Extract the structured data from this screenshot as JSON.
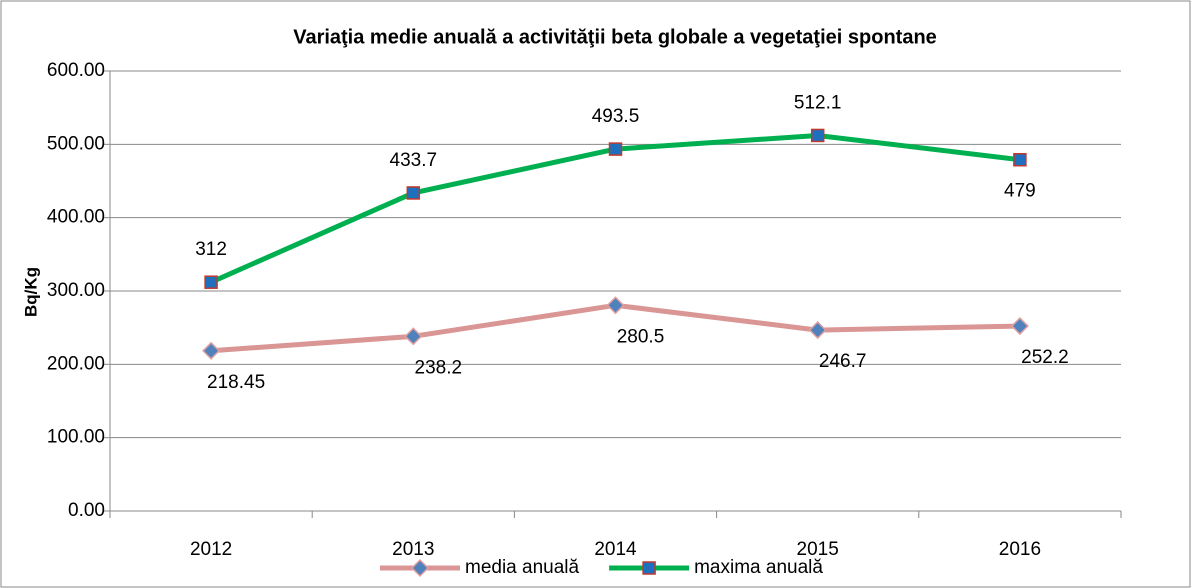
{
  "chart_data": {
    "type": "line",
    "title": "Variaţia medie anuală a activităţii beta globale a vegetaţiei spontane",
    "y_label": "Bq/Kg",
    "categories": [
      "2012",
      "2013",
      "2014",
      "2015",
      "2016"
    ],
    "series": [
      {
        "name": "media anuală",
        "color": "#d99694",
        "marker_color": "#4f81bd",
        "marker": "diamond",
        "values": [
          218.45,
          238.2,
          280.5,
          246.7,
          252.2
        ]
      },
      {
        "name": "maxima anuală",
        "color": "#00b050",
        "marker_color": "#1f6fbf",
        "marker": "square",
        "values": [
          312,
          433.7,
          493.5,
          512.1,
          479
        ]
      }
    ],
    "ylim": [
      0,
      600
    ],
    "yticks": [
      {
        "value": 0,
        "label": "0.00"
      },
      {
        "value": 100,
        "label": "100.00"
      },
      {
        "value": 200,
        "label": "200.00"
      },
      {
        "value": 300,
        "label": "300.00"
      },
      {
        "value": 400,
        "label": "400.00"
      },
      {
        "value": 500,
        "label": "500.00"
      },
      {
        "value": 600,
        "label": "600.00"
      }
    ],
    "grid": true,
    "legend": "bottom"
  }
}
